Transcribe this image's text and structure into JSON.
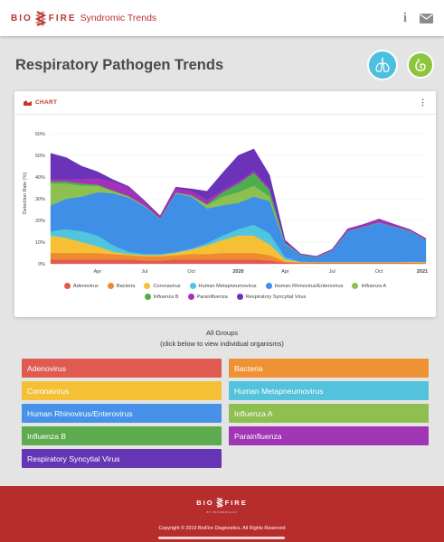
{
  "header": {
    "brand_left": "BIO",
    "brand_right": "FIRE",
    "brand_sub": "Syndromic Trends",
    "info_icon": "info-icon",
    "mail_icon": "envelope-icon"
  },
  "page": {
    "title": "Respiratory Pathogen Trends",
    "panel_buttons": [
      {
        "name": "respiratory-panel",
        "icon": "lungs-icon",
        "color": "#4dbfe0"
      },
      {
        "name": "gastrointestinal-panel",
        "icon": "stomach-icon",
        "color": "#8cc63f"
      }
    ]
  },
  "chart_card": {
    "label": "CHART",
    "menu_icon": "more-vert-icon"
  },
  "chart_data": {
    "type": "area",
    "stacked": true,
    "ylabel": "Detection Rate (%)",
    "ylim": [
      0,
      65
    ],
    "y_ticks": [
      "0%",
      "10%",
      "20%",
      "30%",
      "40%",
      "50%",
      "60%"
    ],
    "x_ticks": [
      "Apr",
      "Jul",
      "Oct",
      "2020",
      "Apr",
      "Jul",
      "Oct",
      "2021"
    ],
    "x": [
      "Jan 2019",
      "Feb 2019",
      "Mar 2019",
      "Apr 2019",
      "May 2019",
      "Jun 2019",
      "Jul 2019",
      "Aug 2019",
      "Sep 2019",
      "Oct 2019",
      "Nov 2019",
      "Dec 2019",
      "Jan 2020",
      "Feb 2020",
      "Mar 2020",
      "Apr 2020",
      "May 2020",
      "Jun 2020",
      "Jul 2020",
      "Aug 2020",
      "Sep 2020",
      "Oct 2020",
      "Nov 2020",
      "Dec 2020",
      "Jan 2021"
    ],
    "series": [
      {
        "name": "Adenovirus",
        "color": "#e05a4f",
        "values": [
          2,
          2,
          2,
          2,
          2,
          2,
          1.5,
          1.5,
          2,
          2,
          2,
          2,
          2,
          2,
          1.5,
          0.5,
          0.3,
          0.3,
          0.3,
          0.3,
          0.3,
          0.3,
          0.3,
          0.3,
          0.2
        ]
      },
      {
        "name": "Bacteria",
        "color": "#ef8a30",
        "values": [
          3,
          3,
          3,
          3,
          2.5,
          2,
          2,
          2,
          2,
          2.5,
          2.5,
          3,
          3,
          3,
          2.5,
          0.5,
          0.3,
          0.3,
          0.3,
          0.3,
          0.3,
          0.3,
          0.3,
          0.3,
          0.3
        ]
      },
      {
        "name": "Coronavirus",
        "color": "#f5c036",
        "values": [
          8,
          7,
          5,
          3,
          1,
          0.5,
          0.5,
          0.5,
          1,
          2,
          4,
          6,
          8,
          8,
          5,
          1,
          0.2,
          0.2,
          0.2,
          0.2,
          0.2,
          0.2,
          0.2,
          0.3,
          0.3
        ]
      },
      {
        "name": "Human Metapneumovirus",
        "color": "#4fc6de",
        "values": [
          2,
          4,
          5,
          5,
          3,
          1,
          0.5,
          0.5,
          0.5,
          0.5,
          1,
          2,
          3,
          5,
          5,
          1,
          0.2,
          0.1,
          0.1,
          0.1,
          0.1,
          0.1,
          0.1,
          0.1,
          0.1
        ]
      },
      {
        "name": "Human Rhinovirus/Enterovirus",
        "color": "#3f8fe6",
        "values": [
          12,
          14,
          16,
          20,
          24,
          25,
          22,
          16,
          27,
          24,
          16,
          14,
          12,
          13,
          15,
          6,
          3,
          2,
          5,
          14,
          16,
          18,
          16,
          14,
          10
        ]
      },
      {
        "name": "Influenza A",
        "color": "#8cc152",
        "values": [
          10,
          7,
          5,
          3,
          1,
          0.5,
          0.3,
          0.3,
          0.3,
          0.5,
          1.5,
          4,
          5,
          5,
          2,
          0.3,
          0.1,
          0.1,
          0.1,
          0.1,
          0.1,
          0.1,
          0.1,
          0.1,
          0.1
        ]
      },
      {
        "name": "Influenza B",
        "color": "#4cae4f",
        "values": [
          1,
          1,
          1,
          0.5,
          0.3,
          0.2,
          0.1,
          0.1,
          0.1,
          0.1,
          0.5,
          2,
          4,
          6,
          3,
          0.3,
          0.1,
          0.1,
          0.1,
          0.1,
          0.1,
          0.1,
          0.1,
          0.1,
          0.1
        ]
      },
      {
        "name": "Parainfluenza",
        "color": "#a531b8",
        "values": [
          1,
          1,
          2,
          3,
          4,
          4,
          2,
          1,
          2,
          2,
          2,
          1,
          1,
          1,
          1,
          0.3,
          0.2,
          0.3,
          0.5,
          1,
          1,
          1.5,
          1,
          0.5,
          0.5
        ]
      },
      {
        "name": "Respiratory Syncytial Virus",
        "color": "#6a33b8",
        "values": [
          12,
          10,
          6,
          3,
          1,
          0.5,
          0.3,
          0.3,
          0.5,
          1,
          4,
          8,
          12,
          10,
          6,
          1,
          0.2,
          0.1,
          0.1,
          0.1,
          0.1,
          0.1,
          0.1,
          0.1,
          0.1
        ]
      }
    ]
  },
  "groups": {
    "title": "All Groups",
    "subtitle": "(click below to view individual organisms)",
    "buttons": [
      {
        "label": "Adenovirus",
        "color": "#e05a4f"
      },
      {
        "label": "Bacteria",
        "color": "#ef9233"
      },
      {
        "label": "Coronavirus",
        "color": "#f4c036"
      },
      {
        "label": "Human Metapneumovirus",
        "color": "#53c2dc"
      },
      {
        "label": "Human Rhinovirus/Enterovirus",
        "color": "#4792e8"
      },
      {
        "label": "Influenza A",
        "color": "#8fbf50"
      },
      {
        "label": "Influenza B",
        "color": "#5daa4f"
      },
      {
        "label": "Parainfluenza",
        "color": "#a035b5"
      },
      {
        "label": "Respiratory Syncytial Virus",
        "color": "#6535b5"
      }
    ]
  },
  "footer": {
    "logo_left": "BIO",
    "logo_right": "FIRE",
    "byline": "BY BIOMÉRIEUX",
    "copyright": "Copyright © 2019 BioFire Diagnostics. All Rights Reserved"
  }
}
